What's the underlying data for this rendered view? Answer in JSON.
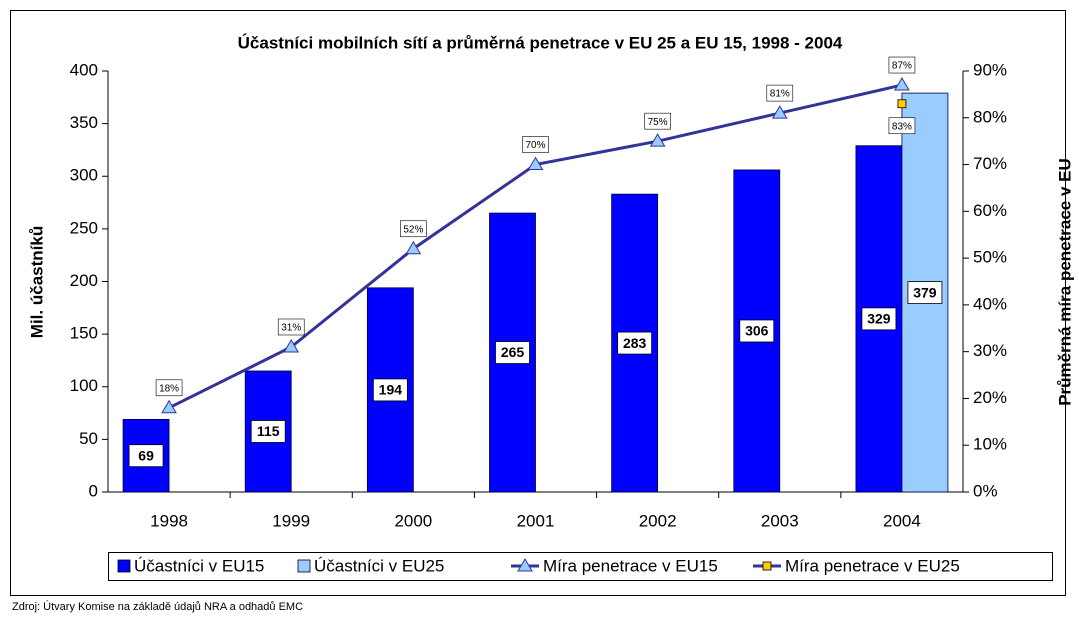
{
  "chart_data": {
    "type": "bar",
    "title": "Účastníci mobilních sítí a průměrná penetrace v EU 25 a EU 15, 1998 - 2004",
    "y_label": "Mil. účastníků",
    "y2_label": "Průměrná míra penetrace v EU",
    "categories": [
      "1998",
      "1999",
      "2000",
      "2001",
      "2002",
      "2003",
      "2004"
    ],
    "series": [
      {
        "name": "Účastníci v EU15",
        "type": "bar",
        "color": "#0000ff",
        "values": [
          69,
          115,
          194,
          265,
          283,
          306,
          329
        ]
      },
      {
        "name": "Účastníci v EU25",
        "type": "bar",
        "color": "#99ccff",
        "values": [
          null,
          null,
          null,
          null,
          null,
          null,
          379
        ]
      },
      {
        "name": "Míra penetrace v EU15",
        "type": "line",
        "axis": "y2",
        "color": "#333399",
        "marker_color": "#99ccff",
        "marker": "triangle",
        "values": [
          18,
          31,
          52,
          70,
          75,
          81,
          87
        ],
        "value_labels": [
          "18%",
          "31%",
          "52%",
          "70%",
          "75%",
          "81%",
          "87%"
        ]
      },
      {
        "name": "Míra penetrace v EU25",
        "type": "line",
        "axis": "y2",
        "color": "#333399",
        "marker_color": "#ffcc00",
        "marker": "square",
        "values": [
          null,
          null,
          null,
          null,
          null,
          null,
          83
        ],
        "value_labels": [
          null,
          null,
          null,
          null,
          null,
          null,
          "83%"
        ]
      }
    ],
    "ylim": [
      0,
      400
    ],
    "yticks": [
      0,
      50,
      100,
      150,
      200,
      250,
      300,
      350,
      400
    ],
    "y2lim": [
      0,
      90
    ],
    "y2ticks": [
      {
        "value": 0,
        "label": "0%"
      },
      {
        "value": 10,
        "label": "10%"
      },
      {
        "value": 20,
        "label": "20%"
      },
      {
        "value": 30,
        "label": "30%"
      },
      {
        "value": 40,
        "label": "40%"
      },
      {
        "value": 50,
        "label": "50%"
      },
      {
        "value": 60,
        "label": "60%"
      },
      {
        "value": 70,
        "label": "70%"
      },
      {
        "value": 80,
        "label": "80%"
      },
      {
        "value": 90,
        "label": "90%"
      }
    ],
    "legend": "bottom",
    "source": "Zdroj: Útvary Komise na základě údajů NRA a odhadů EMC"
  }
}
